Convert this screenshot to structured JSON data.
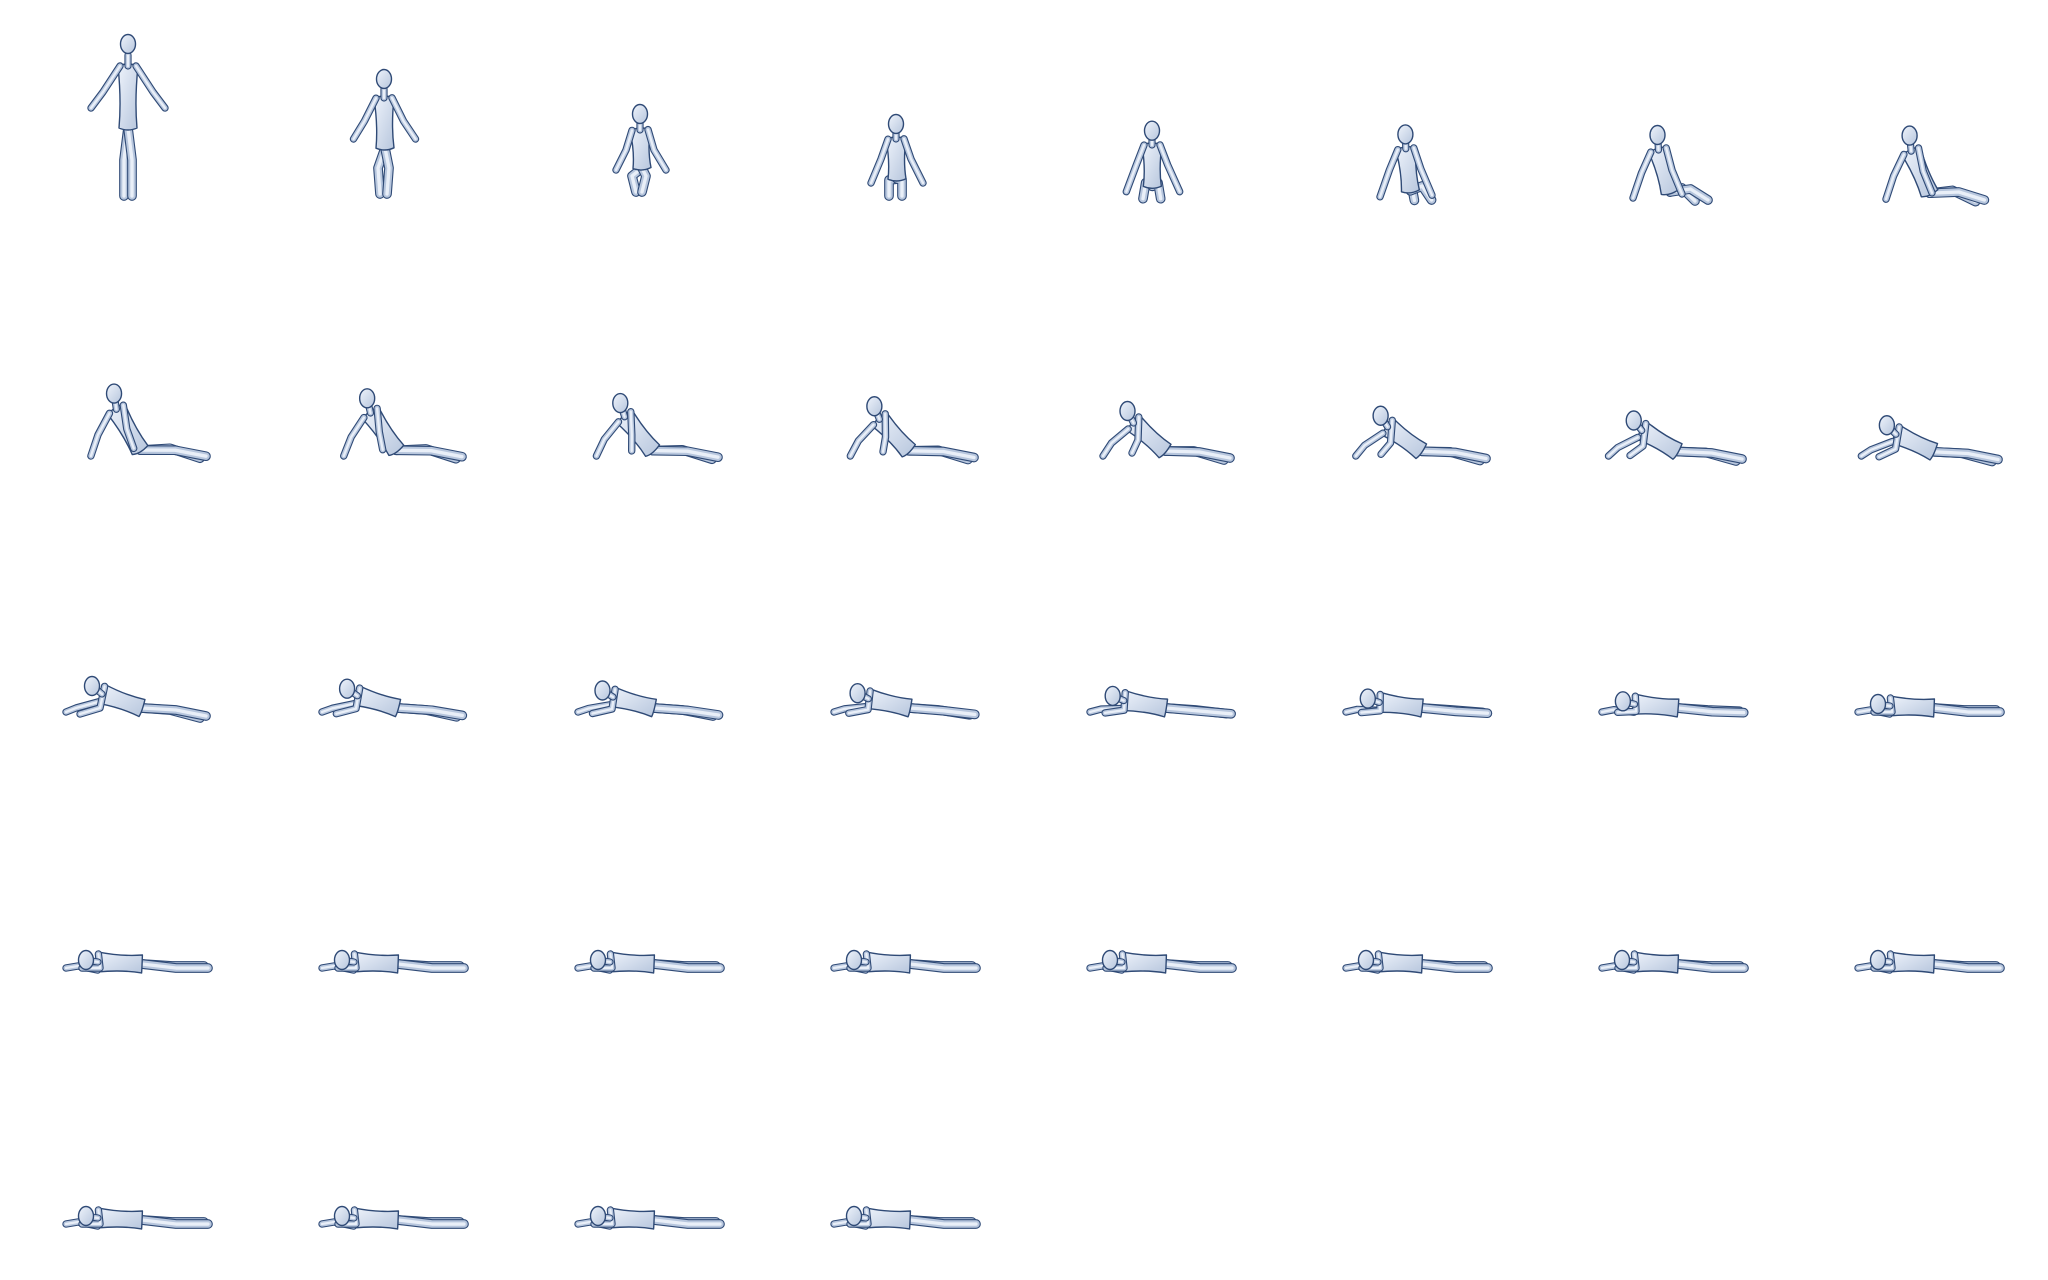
{
  "sheet": {
    "background": "#ffffff",
    "figure_fill_light": "#eef3fb",
    "figure_fill_dark": "#b7c6dd",
    "figure_outline": "#2f4a76",
    "columns": 8,
    "frame_count": 36
  },
  "frames": [
    {
      "pose": "standing",
      "progress": 0.0
    },
    {
      "pose": "standing",
      "progress": 0.03
    },
    {
      "pose": "crouching",
      "progress": 0.06
    },
    {
      "pose": "sitting",
      "progress": 0.09
    },
    {
      "pose": "sitting",
      "progress": 0.11
    },
    {
      "pose": "sitting",
      "progress": 0.14
    },
    {
      "pose": "sitting",
      "progress": 0.17
    },
    {
      "pose": "reclining",
      "progress": 0.2
    },
    {
      "pose": "reclining",
      "progress": 0.23
    },
    {
      "pose": "reclining",
      "progress": 0.26
    },
    {
      "pose": "reclining",
      "progress": 0.29
    },
    {
      "pose": "reclining",
      "progress": 0.31
    },
    {
      "pose": "reclining",
      "progress": 0.34
    },
    {
      "pose": "reclining",
      "progress": 0.37
    },
    {
      "pose": "reclining",
      "progress": 0.4
    },
    {
      "pose": "reclining",
      "progress": 0.43
    },
    {
      "pose": "lying",
      "progress": 0.46
    },
    {
      "pose": "lying",
      "progress": 0.49
    },
    {
      "pose": "lying",
      "progress": 0.51
    },
    {
      "pose": "lying",
      "progress": 0.54
    },
    {
      "pose": "lying",
      "progress": 0.57
    },
    {
      "pose": "lying",
      "progress": 0.6
    },
    {
      "pose": "lying",
      "progress": 0.63
    },
    {
      "pose": "lying",
      "progress": 0.66
    },
    {
      "pose": "lying",
      "progress": 0.69
    },
    {
      "pose": "lying",
      "progress": 0.71
    },
    {
      "pose": "lying",
      "progress": 0.74
    },
    {
      "pose": "lying",
      "progress": 0.77
    },
    {
      "pose": "lying",
      "progress": 0.8
    },
    {
      "pose": "lying",
      "progress": 0.83
    },
    {
      "pose": "lying",
      "progress": 0.86
    },
    {
      "pose": "lying",
      "progress": 0.89
    },
    {
      "pose": "lying",
      "progress": 0.91
    },
    {
      "pose": "lying",
      "progress": 0.94
    },
    {
      "pose": "lying",
      "progress": 0.97
    },
    {
      "pose": "lying",
      "progress": 1.0
    }
  ]
}
